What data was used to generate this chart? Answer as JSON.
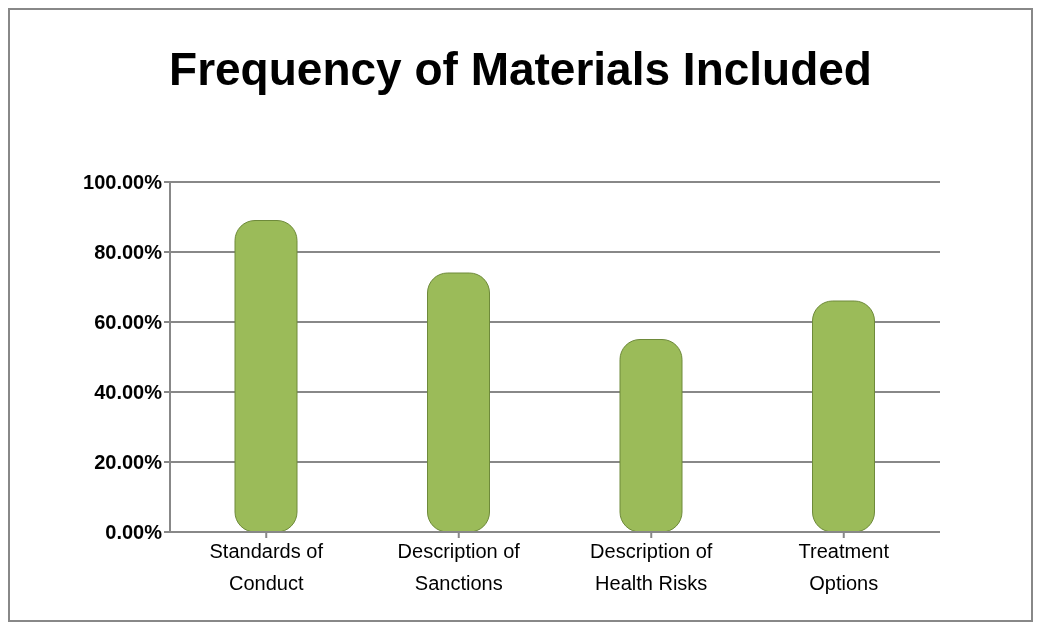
{
  "chart_data": {
    "type": "bar",
    "title": "Frequency of Materials Included",
    "categories": [
      "Standards of Conduct",
      "Description of Sanctions",
      "Description of Health Risks",
      "Treatment Options"
    ],
    "values": [
      89,
      74,
      55,
      66
    ],
    "color": "#9bbb59",
    "ylim": [
      0,
      100
    ],
    "yticks": [
      {
        "value": 0,
        "label": "0.00%"
      },
      {
        "value": 20,
        "label": "20.00%"
      },
      {
        "value": 40,
        "label": "40.00%"
      },
      {
        "value": 60,
        "label": "60.00%"
      },
      {
        "value": 80,
        "label": "80.00%"
      },
      {
        "value": 100,
        "label": "100.00%"
      }
    ],
    "grid": "y",
    "legend": false
  }
}
